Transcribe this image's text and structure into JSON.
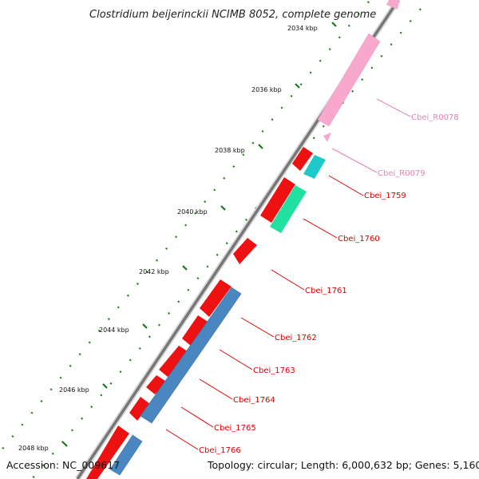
{
  "title": "Clostridium beijerinckii NCIMB 8052, complete genome",
  "footer": {
    "accession": "Accession: NC_009617",
    "summary": "Topology: circular; Length: 6,000,632 bp; Genes: 5,160"
  },
  "axis_labels": [
    "2034 kbp",
    "2036 kbp",
    "2038 kbp",
    "2040 kbp",
    "2042 kbp",
    "2044 kbp",
    "2046 kbp",
    "2048 kbp"
  ],
  "colors": {
    "cds": "#ee1111",
    "rrna": "#f7a8cc",
    "trna": "#1fc9c9",
    "other": "#22e0a0",
    "cds_minus": "#4a86c0",
    "backbone": "#808080",
    "tick": "#1a7a1a"
  },
  "features": [
    {
      "label": "Cbei_R0078",
      "color": "#e880b4"
    },
    {
      "label": "Cbei_R0079",
      "color": "#e880b4"
    },
    {
      "label": "Cbei_1759",
      "color": "#dd0000"
    },
    {
      "label": "Cbei_1760",
      "color": "#dd0000"
    },
    {
      "label": "Cbei_1761",
      "color": "#dd0000"
    },
    {
      "label": "Cbei_1762",
      "color": "#dd0000"
    },
    {
      "label": "Cbei_1763",
      "color": "#dd0000"
    },
    {
      "label": "Cbei_1764",
      "color": "#dd0000"
    },
    {
      "label": "Cbei_1765",
      "color": "#dd0000"
    },
    {
      "label": "Cbei_1766",
      "color": "#dd0000"
    }
  ]
}
